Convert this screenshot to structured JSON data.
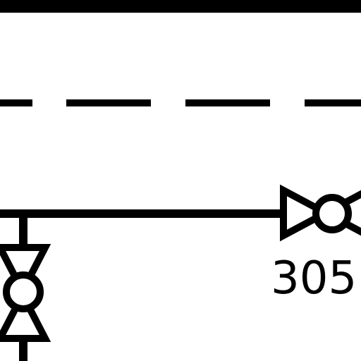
{
  "diagram": {
    "labels": {
      "valve_305": "305"
    },
    "colors": {
      "stroke": "#000000",
      "background": "#ffffff"
    },
    "symbols": {
      "horizontal_valve": "gate-valve-with-round-actuator-icon",
      "vertical_valve": "gate-valve-with-round-actuator-icon"
    }
  }
}
